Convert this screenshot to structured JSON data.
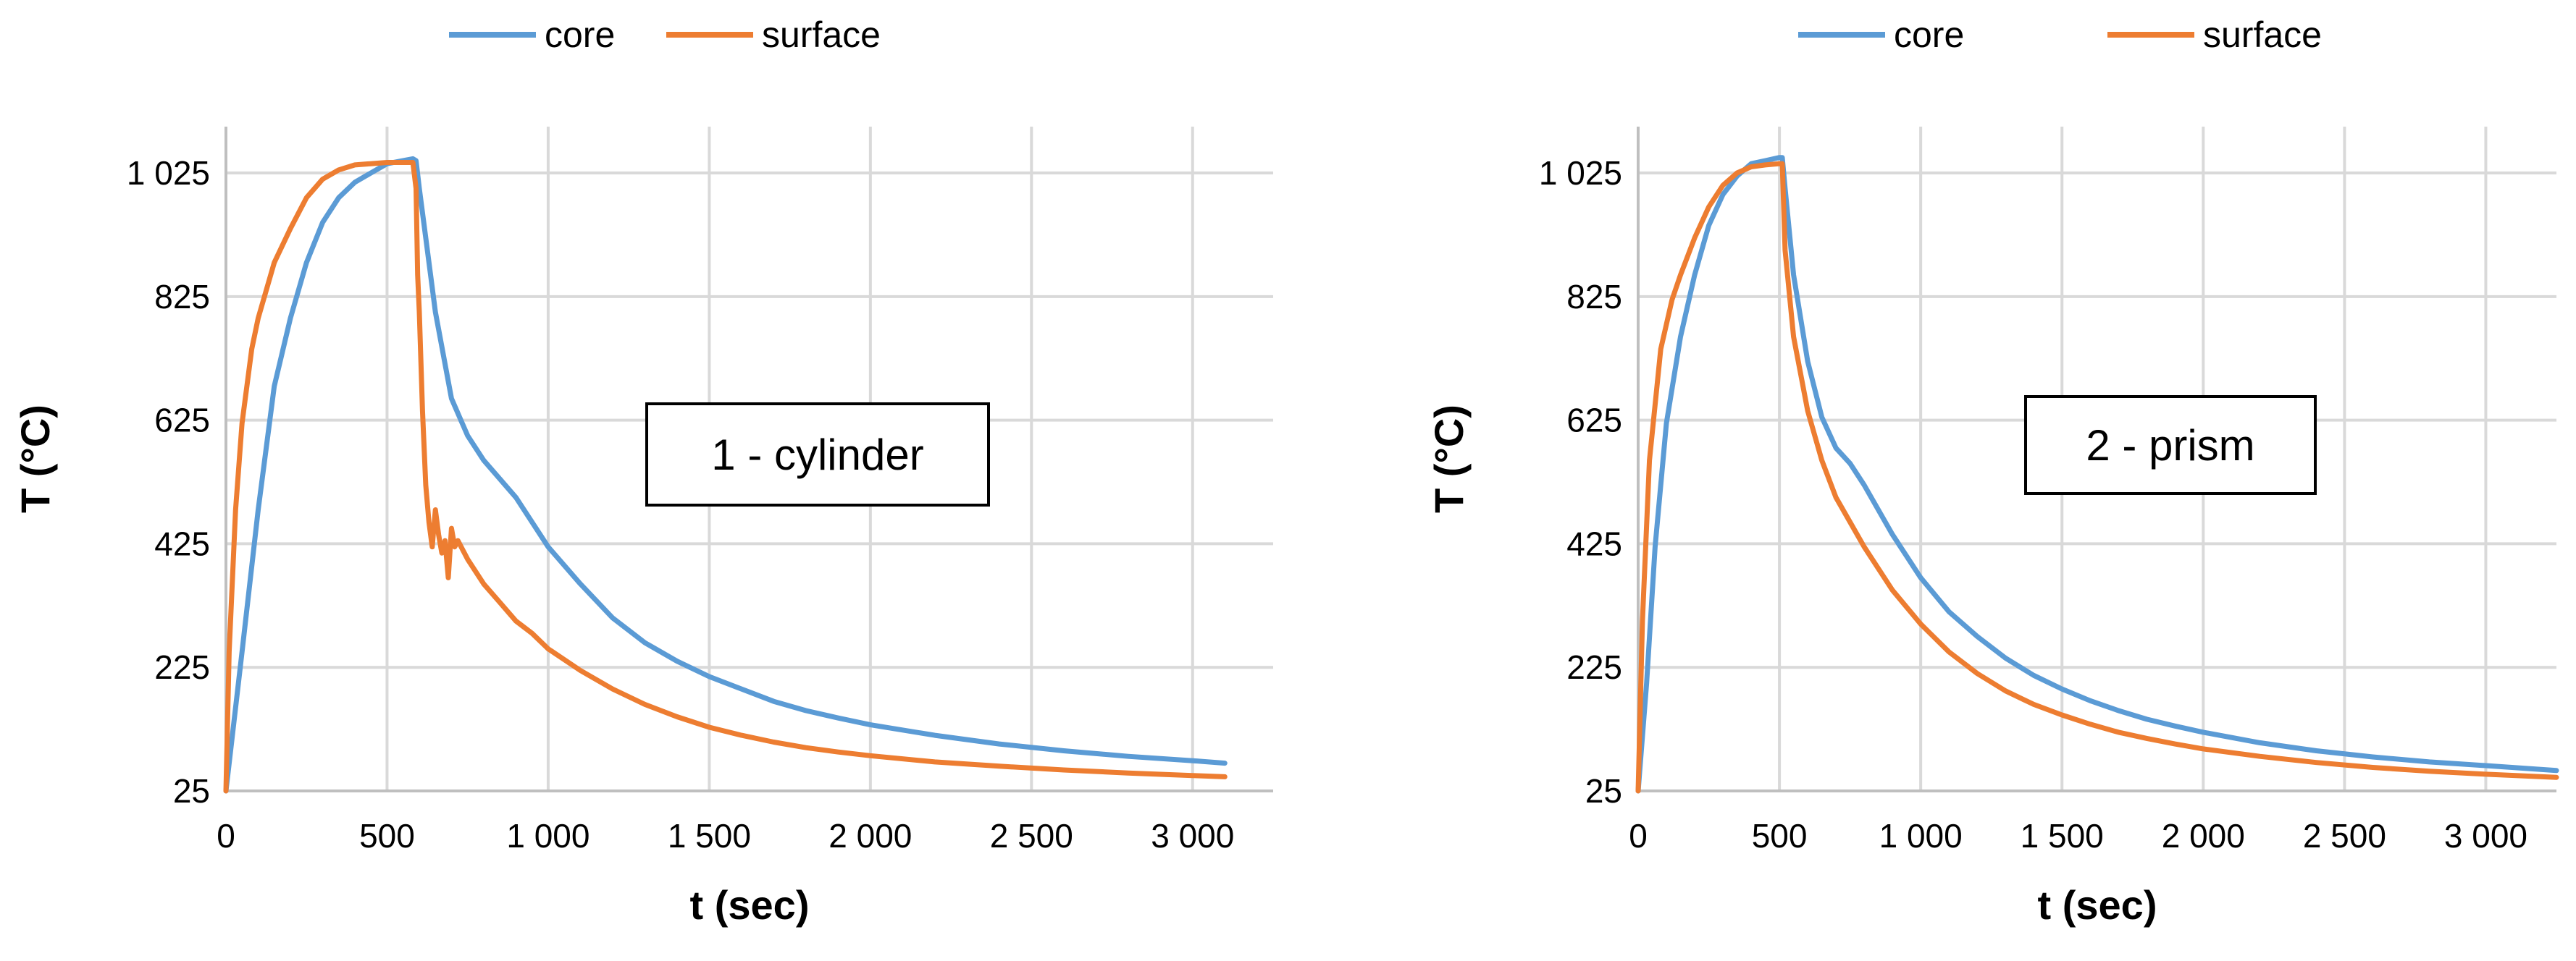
{
  "chart_data": [
    {
      "type": "line",
      "xlabel": "t (sec)",
      "ylabel": "T (°C)",
      "xlim": [
        0,
        3250
      ],
      "ylim": [
        25,
        1100
      ],
      "x_ticks": [
        0,
        500,
        1000,
        1500,
        2000,
        2500,
        3000
      ],
      "x_tick_labels": [
        "0",
        "500",
        "1 000",
        "1 500",
        "2 000",
        "2 500",
        "3 000"
      ],
      "y_ticks": [
        25,
        225,
        425,
        625,
        825,
        1025
      ],
      "y_tick_labels": [
        "25",
        "225",
        "425",
        "625",
        "825",
        "1 025"
      ],
      "grid": true,
      "legend": "top-center",
      "annotation": "1 - cylinder",
      "series": [
        {
          "name": "core",
          "color": "#5b9bd5",
          "x": [
            0,
            50,
            100,
            150,
            200,
            250,
            300,
            350,
            400,
            450,
            500,
            550,
            580,
            590,
            600,
            620,
            650,
            700,
            750,
            800,
            850,
            900,
            1000,
            1100,
            1200,
            1300,
            1400,
            1500,
            1600,
            1700,
            1800,
            1900,
            2000,
            2200,
            2400,
            2600,
            2800,
            3000,
            3100
          ],
          "y": [
            25,
            250,
            480,
            680,
            790,
            880,
            945,
            985,
            1010,
            1025,
            1040,
            1045,
            1048,
            1045,
            1000,
            920,
            800,
            660,
            600,
            560,
            530,
            500,
            420,
            360,
            305,
            265,
            235,
            210,
            190,
            170,
            155,
            143,
            132,
            115,
            101,
            90,
            81,
            74,
            70
          ]
        },
        {
          "name": "surface",
          "color": "#ed7d31",
          "x": [
            0,
            10,
            30,
            50,
            80,
            100,
            150,
            200,
            250,
            300,
            350,
            400,
            450,
            500,
            550,
            580,
            590,
            595,
            600,
            610,
            620,
            630,
            640,
            650,
            660,
            670,
            680,
            690,
            700,
            710,
            720,
            750,
            800,
            850,
            900,
            950,
            1000,
            1100,
            1200,
            1300,
            1400,
            1500,
            1600,
            1700,
            1800,
            1900,
            2000,
            2200,
            2400,
            2600,
            2800,
            3000,
            3100
          ],
          "y": [
            25,
            250,
            480,
            620,
            740,
            790,
            880,
            935,
            985,
            1015,
            1030,
            1038,
            1040,
            1042,
            1042,
            1042,
            1000,
            860,
            800,
            640,
            520,
            460,
            420,
            480,
            440,
            410,
            430,
            370,
            450,
            420,
            430,
            400,
            360,
            330,
            300,
            280,
            255,
            220,
            190,
            165,
            145,
            128,
            115,
            104,
            95,
            88,
            82,
            72,
            65,
            59,
            54,
            50,
            48
          ]
        }
      ]
    },
    {
      "type": "line",
      "xlabel": "t (sec)",
      "ylabel": "T (°C)",
      "xlim": [
        0,
        3250
      ],
      "ylim": [
        25,
        1100
      ],
      "x_ticks": [
        0,
        500,
        1000,
        1500,
        2000,
        2500,
        3000
      ],
      "x_tick_labels": [
        "0",
        "500",
        "1 000",
        "1 500",
        "2 000",
        "2 500",
        "3 000"
      ],
      "y_ticks": [
        25,
        225,
        425,
        625,
        825,
        1025
      ],
      "y_tick_labels": [
        "25",
        "225",
        "425",
        "625",
        "825",
        "1 025"
      ],
      "grid": true,
      "legend": "top-center",
      "annotation": "2 - prism",
      "series": [
        {
          "name": "core",
          "color": "#5b9bd5",
          "x": [
            0,
            30,
            60,
            100,
            150,
            200,
            250,
            300,
            350,
            400,
            450,
            500,
            510,
            520,
            550,
            600,
            650,
            700,
            750,
            800,
            900,
            1000,
            1100,
            1200,
            1300,
            1400,
            1500,
            1600,
            1700,
            1800,
            1900,
            2000,
            2200,
            2400,
            2600,
            2800,
            3000,
            3250
          ],
          "y": [
            25,
            200,
            420,
            620,
            760,
            860,
            940,
            990,
            1020,
            1040,
            1045,
            1050,
            1050,
            1000,
            860,
            720,
            630,
            580,
            555,
            520,
            440,
            370,
            315,
            275,
            240,
            212,
            190,
            171,
            155,
            141,
            130,
            120,
            103,
            90,
            80,
            72,
            66,
            58
          ]
        },
        {
          "name": "surface",
          "color": "#ed7d31",
          "x": [
            0,
            15,
            40,
            80,
            120,
            150,
            200,
            250,
            300,
            350,
            400,
            450,
            500,
            510,
            520,
            550,
            600,
            650,
            700,
            750,
            800,
            900,
            1000,
            1100,
            1200,
            1300,
            1400,
            1500,
            1600,
            1700,
            1800,
            1900,
            2000,
            2200,
            2400,
            2600,
            2800,
            3000,
            3250
          ],
          "y": [
            25,
            300,
            560,
            740,
            820,
            860,
            920,
            970,
            1005,
            1025,
            1035,
            1038,
            1040,
            1040,
            900,
            760,
            640,
            560,
            500,
            460,
            420,
            350,
            295,
            250,
            215,
            187,
            165,
            148,
            133,
            120,
            110,
            101,
            93,
            81,
            71,
            63,
            57,
            52,
            47
          ]
        }
      ]
    }
  ]
}
